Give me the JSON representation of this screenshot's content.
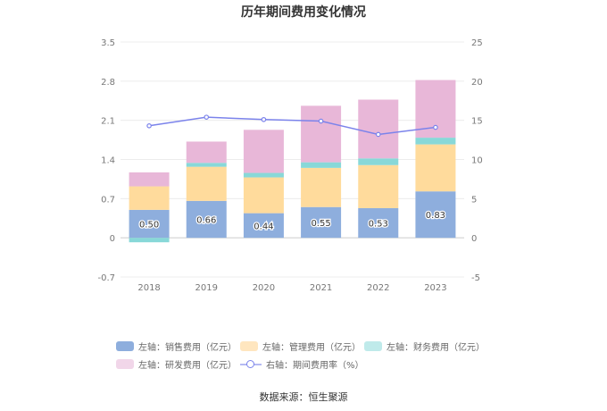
{
  "chart_data": {
    "type": "bar",
    "title": "历年期间费用变化情况",
    "categories": [
      "2018",
      "2019",
      "2020",
      "2021",
      "2022",
      "2023"
    ],
    "left_axis": {
      "min": -0.7,
      "max": 3.5,
      "ticks": [
        "-0.7",
        "0",
        "0.7",
        "1.4",
        "2.1",
        "2.8",
        "3.5"
      ]
    },
    "right_axis": {
      "min": -5,
      "max": 25,
      "ticks": [
        "-5",
        "0",
        "5",
        "10",
        "15",
        "20",
        "25"
      ]
    },
    "series": [
      {
        "name": "左轴：销售费用（亿元）",
        "type": "bar",
        "axis": "left",
        "color": "#8eaedd",
        "values": [
          0.5,
          0.66,
          0.44,
          0.55,
          0.53,
          0.83
        ],
        "labels": [
          "0.50",
          "0.66",
          "0.44",
          "0.55",
          "0.53",
          "0.83"
        ]
      },
      {
        "name": "左轴：管理费用（亿元）",
        "type": "bar",
        "axis": "left",
        "color": "#ffdb9c",
        "values": [
          0.42,
          0.61,
          0.64,
          0.7,
          0.77,
          0.84
        ]
      },
      {
        "name": "左轴：财务费用（亿元）",
        "type": "bar",
        "axis": "left",
        "color": "#88d8d8",
        "values": [
          -0.08,
          0.07,
          0.08,
          0.1,
          0.12,
          0.12
        ]
      },
      {
        "name": "左轴：研发费用（亿元）",
        "type": "bar",
        "axis": "left",
        "color": "#e8b7d8",
        "values": [
          0.25,
          0.38,
          0.77,
          1.01,
          1.05,
          1.03
        ]
      },
      {
        "name": "右轴：期间费用率（%）",
        "type": "line",
        "axis": "right",
        "color": "#7b83eb",
        "values": [
          14.3,
          15.4,
          15.1,
          14.9,
          13.2,
          14.1
        ]
      }
    ],
    "grid": true,
    "legend_position": "bottom"
  },
  "source": "数据来源：恒生聚源"
}
